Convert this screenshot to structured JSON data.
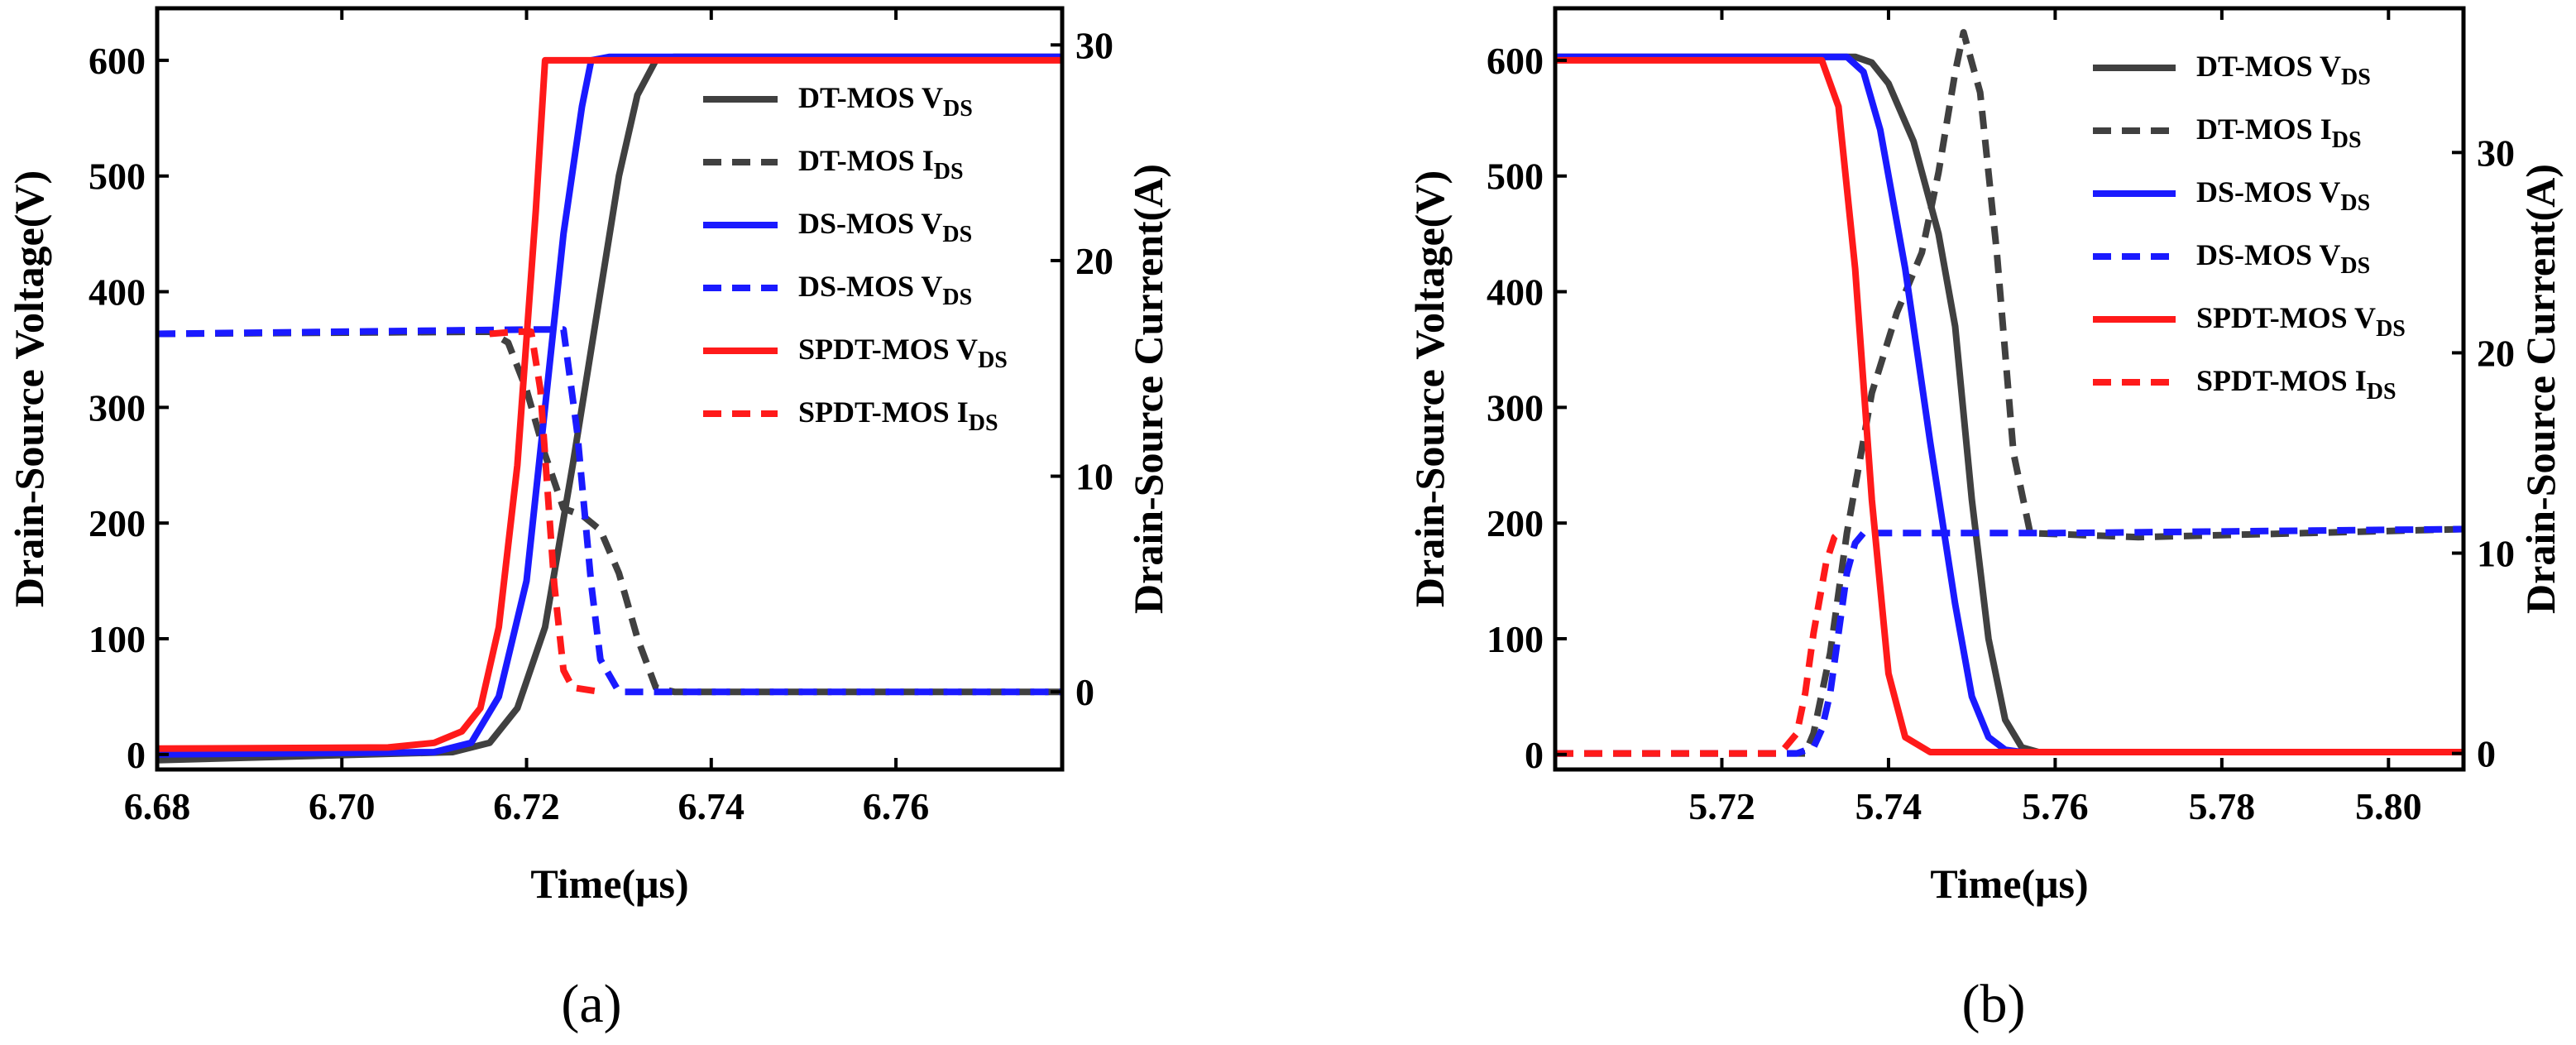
{
  "chart_data": [
    {
      "type": "line",
      "panel_label": "(a)",
      "xlabel": "Time(μs)",
      "ylabel": "Drain-Source Voltage(V)",
      "y2label": "Drain-Source Current(A)",
      "xlim": [
        6.68,
        6.778
      ],
      "ylim": [
        -13,
        645
      ],
      "y2lim": [
        -3.6,
        31.7
      ],
      "xticks": [
        6.68,
        6.7,
        6.72,
        6.74,
        6.76
      ],
      "xtick_labels": [
        "6.68",
        "6.70",
        "6.72",
        "6.74",
        "6.76"
      ],
      "yticks": [
        0,
        100,
        200,
        300,
        400,
        500,
        600
      ],
      "ytick_labels": [
        "0",
        "100",
        "200",
        "300",
        "400",
        "500",
        "600"
      ],
      "y2ticks": [
        0,
        10,
        20,
        30
      ],
      "y2tick_labels": [
        "0",
        "10",
        "20",
        "30"
      ],
      "legend_position": "top-right",
      "series": [
        {
          "name": "DT-MOS V",
          "sub": "DS",
          "axis": "left",
          "color": "#404040",
          "dash": false,
          "x": [
            6.68,
            6.712,
            6.716,
            6.719,
            6.722,
            6.725,
            6.728,
            6.73,
            6.732,
            6.734,
            6.736,
            6.778
          ],
          "y": [
            -5,
            2,
            10,
            40,
            110,
            250,
            400,
            500,
            570,
            600,
            603,
            603
          ]
        },
        {
          "name": "DT-MOS  I",
          "sub": "DS",
          "axis": "right",
          "color": "#404040",
          "dash": true,
          "x": [
            6.68,
            6.716,
            6.718,
            6.72,
            6.722,
            6.724,
            6.726,
            6.728,
            6.73,
            6.732,
            6.734,
            6.736,
            6.778
          ],
          "y": [
            16.6,
            16.7,
            16.2,
            14,
            11,
            8.5,
            8.2,
            7.5,
            5.5,
            2.5,
            0.2,
            0,
            0
          ]
        },
        {
          "name": "DS-MOS V",
          "sub": "DS",
          "axis": "left",
          "color": "#1a1aff",
          "dash": false,
          "x": [
            6.68,
            6.71,
            6.714,
            6.717,
            6.72,
            6.722,
            6.724,
            6.726,
            6.727,
            6.729,
            6.778
          ],
          "y": [
            0,
            2,
            10,
            50,
            150,
            300,
            450,
            560,
            600,
            603,
            603
          ]
        },
        {
          "name": "DS-MOS V",
          "sub": "DS",
          "axis": "right",
          "color": "#1a1aff",
          "dash": true,
          "x": [
            6.68,
            6.72,
            6.724,
            6.7255,
            6.727,
            6.728,
            6.73,
            6.778
          ],
          "y": [
            16.6,
            16.8,
            16.8,
            12,
            5,
            1.5,
            0,
            0
          ]
        },
        {
          "name": "SPDT-MOS V",
          "sub": "DS",
          "axis": "left",
          "color": "#ff1a1a",
          "dash": false,
          "x": [
            6.68,
            6.705,
            6.71,
            6.713,
            6.715,
            6.717,
            6.719,
            6.721,
            6.722,
            6.778
          ],
          "y": [
            5,
            6,
            10,
            20,
            40,
            110,
            250,
            470,
            600,
            600
          ]
        },
        {
          "name": "SPDT-MOS I",
          "sub": "DS",
          "axis": "right",
          "color": "#ff1a1a",
          "dash": true,
          "x": [
            6.716,
            6.719,
            6.7205,
            6.7215,
            6.7225,
            6.723,
            6.724,
            6.725,
            6.728
          ],
          "y": [
            16.6,
            16.7,
            16.7,
            14,
            8,
            5,
            1,
            0.2,
            0
          ]
        }
      ]
    },
    {
      "type": "line",
      "panel_label": "(b)",
      "xlabel": "Time(μs)",
      "ylabel": "Drain-Source Voltage(V)",
      "y2label": "Drain-Source Current(A)",
      "xlim": [
        5.7,
        5.809
      ],
      "ylim": [
        -13,
        645
      ],
      "y2lim": [
        -0.8,
        37.2
      ],
      "xticks": [
        5.72,
        5.74,
        5.76,
        5.78,
        5.8
      ],
      "xtick_labels": [
        "5.72",
        "5.74",
        "5.76",
        "5.78",
        "5.80"
      ],
      "yticks": [
        0,
        100,
        200,
        300,
        400,
        500,
        600
      ],
      "ytick_labels": [
        "0",
        "100",
        "200",
        "300",
        "400",
        "500",
        "600"
      ],
      "y2ticks": [
        0,
        10,
        20,
        30
      ],
      "y2tick_labels": [
        "0",
        "10",
        "20",
        "30"
      ],
      "legend_position": "top-right",
      "series": [
        {
          "name": "DT-MOS V",
          "sub": "DS",
          "axis": "left",
          "color": "#404040",
          "dash": false,
          "x": [
            5.7,
            5.736,
            5.738,
            5.74,
            5.743,
            5.746,
            5.748,
            5.75,
            5.752,
            5.754,
            5.756,
            5.758,
            5.809
          ],
          "y": [
            603,
            603,
            598,
            580,
            530,
            450,
            370,
            220,
            100,
            30,
            6,
            2,
            2
          ]
        },
        {
          "name": "DT-MOS  I",
          "sub": "DS",
          "axis": "right",
          "color": "#404040",
          "dash": true,
          "x": [
            5.7,
            5.73,
            5.731,
            5.733,
            5.735,
            5.738,
            5.741,
            5.744,
            5.746,
            5.748,
            5.749,
            5.751,
            5.753,
            5.755,
            5.757,
            5.77,
            5.79,
            5.809
          ],
          "y": [
            0,
            0,
            1,
            5,
            11,
            18,
            22,
            25,
            29,
            34,
            36,
            33,
            25,
            15,
            11,
            10.8,
            11,
            11.2
          ]
        },
        {
          "name": "DS-MOS V",
          "sub": "DS",
          "axis": "left",
          "color": "#1a1aff",
          "dash": false,
          "x": [
            5.7,
            5.735,
            5.737,
            5.739,
            5.742,
            5.745,
            5.748,
            5.75,
            5.752,
            5.754,
            5.756,
            5.809
          ],
          "y": [
            603,
            603,
            590,
            540,
            420,
            270,
            130,
            50,
            15,
            4,
            2,
            2
          ]
        },
        {
          "name": "DS-MOS V",
          "sub": "DS",
          "axis": "right",
          "color": "#1a1aff",
          "dash": true,
          "x": [
            5.7,
            5.729,
            5.731,
            5.732,
            5.733,
            5.734,
            5.735,
            5.736,
            5.737,
            5.76,
            5.809
          ],
          "y": [
            0,
            0,
            0.3,
            1.2,
            3,
            6,
            9,
            10.5,
            11,
            11,
            11.2
          ]
        },
        {
          "name": "SPDT-MOS V",
          "sub": "DS",
          "axis": "left",
          "color": "#ff1a1a",
          "dash": false,
          "x": [
            5.7,
            5.732,
            5.734,
            5.736,
            5.738,
            5.74,
            5.742,
            5.745,
            5.809
          ],
          "y": [
            600,
            600,
            560,
            420,
            220,
            70,
            15,
            2,
            2
          ]
        },
        {
          "name": "SPDT-MOS I",
          "sub": "DS",
          "axis": "right",
          "color": "#ff1a1a",
          "dash": true,
          "x": [
            5.7,
            5.727,
            5.729,
            5.73,
            5.731,
            5.7325,
            5.7335,
            5.734
          ],
          "y": [
            0,
            0,
            1,
            3,
            6,
            9.5,
            10.8,
            11
          ]
        }
      ]
    }
  ]
}
